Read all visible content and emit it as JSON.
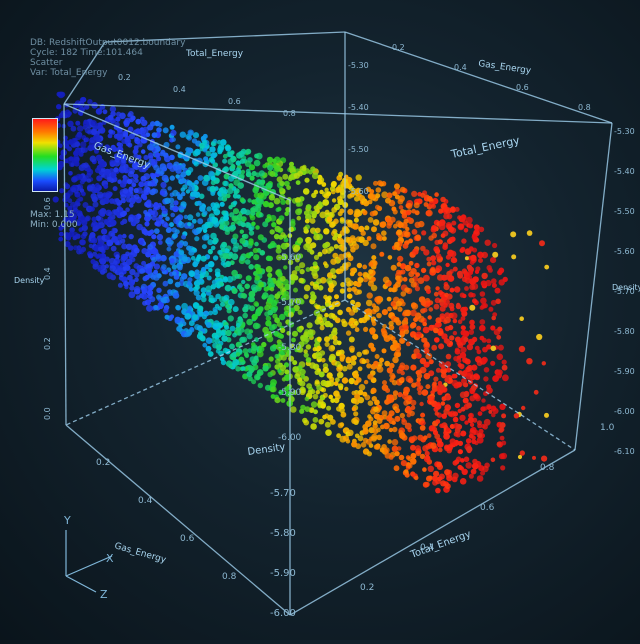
{
  "hud": {
    "db_line": "DB: RedshiftOutput0012.boundary",
    "cycle_line": "Cycle: 182     Time:101.464",
    "plot_name": "Scatter",
    "var_line": "Var: Total_Energy"
  },
  "legend": {
    "max_label": "Max: 1.15",
    "min_label": "Min: 0.000"
  },
  "colors": {
    "axis": "#9fd0ee",
    "tick_text": "#8db8d2",
    "label_text": "#a9d6f0",
    "triad": "#7fb6d8"
  },
  "chart_data": {
    "type": "scatter",
    "subtype": "3d-scatter",
    "axes": {
      "x_label": "Total_Energy",
      "y_label": "Density",
      "z_label": "Gas_Energy",
      "x_ticks": [
        "0.2",
        "0.4",
        "0.6",
        "0.8",
        "1.0"
      ],
      "y_ticks": [
        "-5.70",
        "-5.80",
        "-5.90",
        "-6.00",
        "-6.09"
      ],
      "z_ticks": [
        "0.2",
        "0.4",
        "0.6",
        "0.8"
      ],
      "top_y_ticks": [
        "-5.30",
        "-5.40",
        "-5.50",
        "-5.60"
      ],
      "right_ticks": [
        "-5.30",
        "-5.40",
        "-5.50",
        "-5.60",
        "-5.70",
        "-5.80",
        "-5.90",
        "-6.00",
        "-6.10"
      ],
      "center_ticks": [
        "-5.60",
        "-5.70",
        "-5.80",
        "-5.90",
        "-6.00"
      ],
      "x_range": [
        0,
        1
      ],
      "y_range": [
        -6.1,
        -5.3
      ],
      "z_range": [
        0,
        1
      ]
    },
    "color_variable": "Total_Energy",
    "color_range": [
      0,
      1.15
    ],
    "triad_labels": [
      "Y",
      "X",
      "Z"
    ],
    "grid": false,
    "legend_position": "top-left"
  }
}
